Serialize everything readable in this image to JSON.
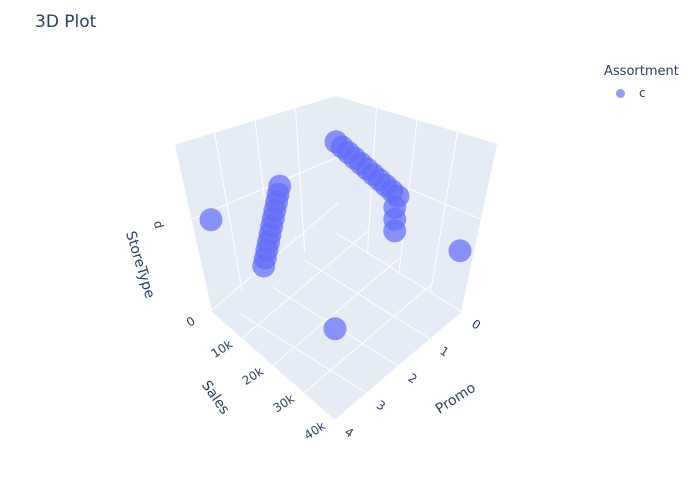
{
  "title": "3D Plot",
  "legend": {
    "title": "Assortment",
    "items": [
      {
        "label": "c",
        "color": "#636efa"
      }
    ]
  },
  "chart_data": {
    "type": "scatter",
    "dimensions": "3d",
    "title": "3D Plot",
    "xlabel": "Sales",
    "ylabel": "Promo",
    "zlabel": "StoreType",
    "x_ticks": [
      "0",
      "10k",
      "20k",
      "30k",
      "40k"
    ],
    "y_ticks": [
      "0",
      "1",
      "2",
      "3",
      "4"
    ],
    "z_ticks": [
      "d"
    ],
    "series": [
      {
        "name": "c",
        "color": "#636efa",
        "points": [
          {
            "sales": 0,
            "promo": 4,
            "store_type": "d"
          },
          {
            "sales": 0,
            "promo": 0,
            "store_type": "d"
          },
          {
            "sales": 40000,
            "promo": 0,
            "store_type": "d"
          },
          {
            "sales": 40000,
            "promo": 4,
            "store_type": "d"
          },
          {
            "sales": 2000,
            "promo": 2.0,
            "store_type": "d"
          },
          {
            "sales": 3500,
            "promo": 2.2,
            "store_type": "d"
          },
          {
            "sales": 5000,
            "promo": 2.4,
            "store_type": "d"
          },
          {
            "sales": 6500,
            "promo": 2.6,
            "store_type": "d"
          },
          {
            "sales": 8000,
            "promo": 2.8,
            "store_type": "d"
          },
          {
            "sales": 9500,
            "promo": 3.0,
            "store_type": "d"
          },
          {
            "sales": 11000,
            "promo": 3.2,
            "store_type": "d"
          },
          {
            "sales": 12500,
            "promo": 3.4,
            "store_type": "d"
          },
          {
            "sales": 14000,
            "promo": 3.6,
            "store_type": "d"
          },
          {
            "sales": 15500,
            "promo": 3.8,
            "store_type": "d"
          },
          {
            "sales": 17000,
            "promo": 4.0,
            "store_type": "d"
          },
          {
            "sales": 2000,
            "promo": 0.0,
            "store_type": "d"
          },
          {
            "sales": 4000,
            "promo": 0.0,
            "store_type": "d"
          },
          {
            "sales": 6000,
            "promo": 0.0,
            "store_type": "d"
          },
          {
            "sales": 8000,
            "promo": 0.0,
            "store_type": "d"
          },
          {
            "sales": 10000,
            "promo": 0.0,
            "store_type": "d"
          },
          {
            "sales": 12000,
            "promo": 0.0,
            "store_type": "d"
          },
          {
            "sales": 14000,
            "promo": 0.0,
            "store_type": "d"
          },
          {
            "sales": 16000,
            "promo": 0.0,
            "store_type": "d"
          },
          {
            "sales": 18000,
            "promo": 0.0,
            "store_type": "d"
          },
          {
            "sales": 20000,
            "promo": 0.0,
            "store_type": "d"
          },
          {
            "sales": 22000,
            "promo": 0.3,
            "store_type": "d"
          },
          {
            "sales": 24500,
            "promo": 0.55,
            "store_type": "d"
          },
          {
            "sales": 27000,
            "promo": 0.8,
            "store_type": "d"
          }
        ]
      }
    ]
  }
}
